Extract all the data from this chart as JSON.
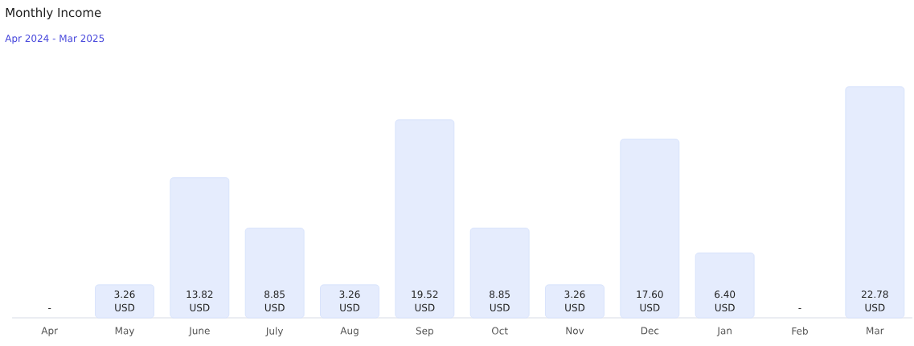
{
  "chart_data": {
    "type": "bar",
    "title": "Monthly Income",
    "subtitle": "Apr 2024 - Mar 2025",
    "categories": [
      "Apr",
      "May",
      "June",
      "July",
      "Aug",
      "Sep",
      "Oct",
      "Nov",
      "Dec",
      "Jan",
      "Feb",
      "Mar"
    ],
    "values": [
      null,
      3.26,
      13.82,
      8.85,
      3.26,
      19.52,
      8.85,
      3.26,
      17.6,
      6.4,
      null,
      22.78
    ],
    "value_labels": [
      "-",
      "3.26 USD",
      "13.82 USD",
      "8.85 USD",
      "3.26 USD",
      "19.52 USD",
      "8.85 USD",
      "3.26 USD",
      "17.60 USD",
      "6.40 USD",
      "-",
      "22.78 USD"
    ],
    "color": "#e5ecfd"
  }
}
